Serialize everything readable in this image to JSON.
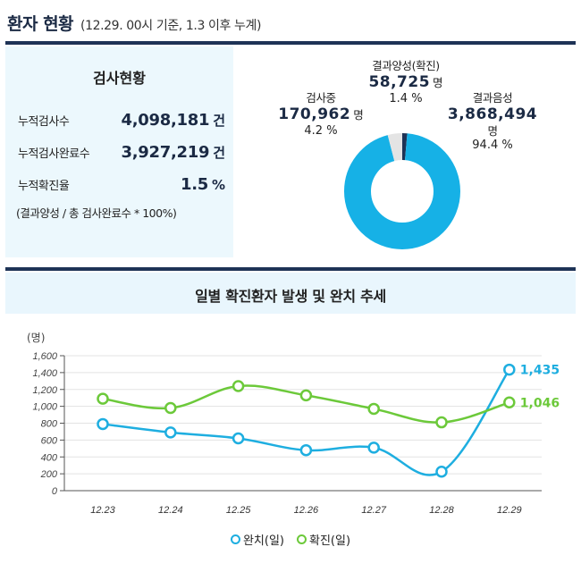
{
  "header": {
    "title": "환자 현황",
    "subtitle": "(12.29. 00시 기준, 1.3 이후 누계)"
  },
  "stats": {
    "title": "검사현황",
    "rows": [
      {
        "label": "누적검사수",
        "value": "4,098,181",
        "unit": "건"
      },
      {
        "label": "누적검사완료수",
        "value": "3,927,219",
        "unit": "건"
      },
      {
        "label": "누적확진율",
        "value": "1.5",
        "unit": "%"
      }
    ],
    "note": "(결과양성 / 총 검사완료수 * 100%)"
  },
  "donut": {
    "segments": [
      {
        "name": "결과음성",
        "value": "3,868,494",
        "unit": "명",
        "pct": "94.4 %",
        "share": 94.4,
        "color": "#16b1e6"
      },
      {
        "name": "검사중",
        "value": "170,962",
        "unit": "명",
        "pct": "4.2 %",
        "share": 4.2,
        "color": "#e4e4e4"
      },
      {
        "name": "결과양성(확진)",
        "value": "58,725",
        "unit": "명",
        "pct": "1.4 %",
        "share": 1.4,
        "color": "#1e3356"
      }
    ]
  },
  "trend": {
    "title": "일별 확진환자 발생 및 완치 추세"
  },
  "chart_data": {
    "type": "line",
    "title": "일별 확진환자 발생 및 완치 추세",
    "ylabel": "(명)",
    "ylim": [
      0,
      1600
    ],
    "yticks": [
      "0",
      "200",
      "400",
      "600",
      "800",
      "1,000",
      "1,200",
      "1,400",
      "1,600"
    ],
    "categories": [
      "12.23",
      "12.24",
      "12.25",
      "12.26",
      "12.27",
      "12.28",
      "12.29"
    ],
    "grid": true,
    "legend": "bottom-center",
    "series": [
      {
        "name": "완치(일)",
        "color": "#1eaee0",
        "values": [
          790,
          690,
          620,
          480,
          510,
          225,
          1435
        ],
        "end_label": "1,435"
      },
      {
        "name": "확진(일)",
        "color": "#6cc93a",
        "values": [
          1090,
          980,
          1240,
          1130,
          970,
          810,
          1046
        ],
        "end_label": "1,046"
      }
    ]
  }
}
